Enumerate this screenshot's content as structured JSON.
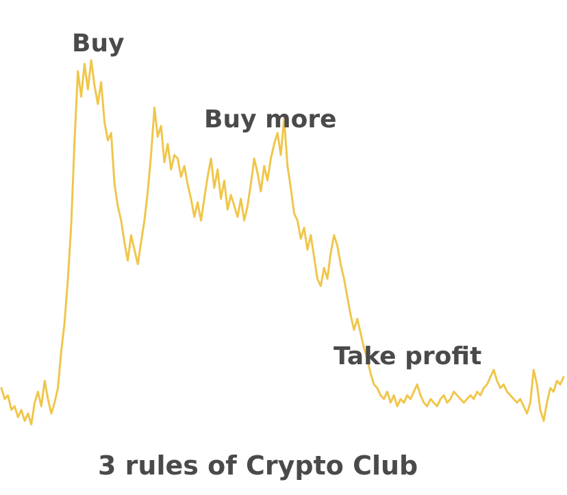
{
  "chart_data": {
    "type": "line",
    "title": "",
    "caption": "3 rules of Crypto Club",
    "xlabel": "",
    "ylabel": "",
    "axes_visible": false,
    "grid": false,
    "legend": "none",
    "line_color": "#f0c64a",
    "series": [
      {
        "values": [
          0.1,
          0.07,
          0.08,
          0.04,
          0.05,
          0.02,
          0.04,
          0.01,
          0.03,
          0.0,
          0.06,
          0.09,
          0.05,
          0.12,
          0.07,
          0.03,
          0.06,
          0.1,
          0.2,
          0.28,
          0.4,
          0.55,
          0.78,
          0.97,
          0.9,
          0.99,
          0.92,
          1.0,
          0.93,
          0.88,
          0.94,
          0.83,
          0.78,
          0.8,
          0.66,
          0.6,
          0.56,
          0.5,
          0.45,
          0.52,
          0.48,
          0.44,
          0.5,
          0.56,
          0.64,
          0.74,
          0.87,
          0.79,
          0.82,
          0.72,
          0.77,
          0.7,
          0.74,
          0.73,
          0.68,
          0.71,
          0.66,
          0.62,
          0.57,
          0.61,
          0.56,
          0.62,
          0.68,
          0.73,
          0.65,
          0.7,
          0.62,
          0.67,
          0.59,
          0.63,
          0.6,
          0.57,
          0.62,
          0.56,
          0.6,
          0.66,
          0.73,
          0.69,
          0.64,
          0.71,
          0.67,
          0.73,
          0.77,
          0.8,
          0.74,
          0.84,
          0.71,
          0.65,
          0.58,
          0.56,
          0.51,
          0.54,
          0.48,
          0.52,
          0.46,
          0.4,
          0.38,
          0.43,
          0.4,
          0.47,
          0.52,
          0.49,
          0.44,
          0.4,
          0.35,
          0.3,
          0.26,
          0.29,
          0.25,
          0.21,
          0.18,
          0.14,
          0.11,
          0.1,
          0.08,
          0.07,
          0.09,
          0.06,
          0.08,
          0.05,
          0.07,
          0.06,
          0.08,
          0.07,
          0.09,
          0.11,
          0.08,
          0.06,
          0.05,
          0.07,
          0.06,
          0.05,
          0.07,
          0.08,
          0.06,
          0.07,
          0.09,
          0.08,
          0.07,
          0.06,
          0.07,
          0.08,
          0.07,
          0.09,
          0.08,
          0.1,
          0.11,
          0.13,
          0.15,
          0.12,
          0.1,
          0.11,
          0.09,
          0.08,
          0.07,
          0.06,
          0.07,
          0.05,
          0.03,
          0.06,
          0.15,
          0.11,
          0.04,
          0.01,
          0.06,
          0.1,
          0.09,
          0.12,
          0.11,
          0.13
        ]
      }
    ],
    "annotations": [
      {
        "id": "buy",
        "text": "Buy",
        "x_index": 27
      },
      {
        "id": "buy_more",
        "text": "Buy more",
        "x_index": 82
      },
      {
        "id": "take_profit",
        "text": "Take profit",
        "x_index": 140
      }
    ]
  }
}
